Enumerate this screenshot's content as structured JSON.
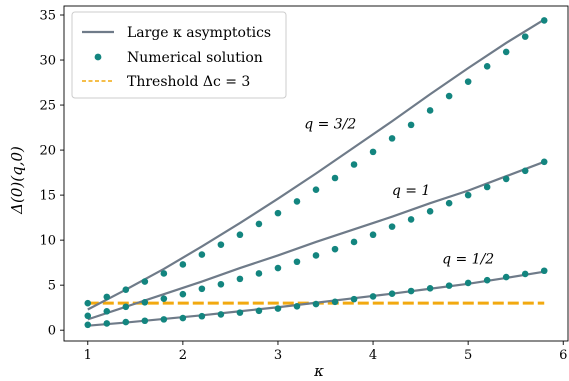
{
  "chart_data": {
    "type": "line",
    "xlabel": "κ",
    "ylabel": "Δ(0)(q,0)",
    "xlim": [
      0.75,
      6.05
    ],
    "ylim": [
      -1.2,
      36
    ],
    "x_ticks": [
      1,
      2,
      3,
      4,
      5,
      6
    ],
    "y_ticks": [
      0,
      5,
      10,
      15,
      20,
      25,
      30,
      35
    ],
    "grid": false,
    "legend_position": "top-left",
    "legend": [
      {
        "label": "Large κ asymptotics",
        "style": "line",
        "color": "#6f7b89"
      },
      {
        "label": "Numerical solution",
        "style": "marker",
        "color": "#13857f"
      },
      {
        "label": "Threshold Δc = 3",
        "style": "dashed",
        "color": "#f2a90f"
      }
    ],
    "annotations": [
      {
        "text": "q = 3/2",
        "x": 3.55,
        "y": 22.4
      },
      {
        "text": "q = 1",
        "x": 4.4,
        "y": 15.0
      },
      {
        "text": "q = 1/2",
        "x": 5.0,
        "y": 7.4
      }
    ],
    "series": [
      {
        "name": "Large κ asymptotics",
        "kind": "curves",
        "color": "#6f7b89",
        "curves": [
          {
            "q": "3/2",
            "x": [
              1.0,
              1.4,
              1.8,
              2.2,
              2.6,
              3.0,
              3.4,
              3.8,
              4.2,
              4.6,
              5.0,
              5.4,
              5.8
            ],
            "y": [
              2.3,
              4.5,
              6.8,
              9.3,
              11.9,
              14.6,
              17.4,
              20.3,
              23.2,
              26.2,
              29.1,
              31.9,
              34.5
            ]
          },
          {
            "q": "1",
            "x": [
              1.0,
              1.4,
              1.8,
              2.2,
              2.6,
              3.0,
              3.4,
              3.8,
              4.2,
              4.6,
              5.0,
              5.4,
              5.8
            ],
            "y": [
              1.2,
              2.6,
              4.0,
              5.4,
              6.9,
              8.3,
              9.8,
              11.2,
              12.6,
              14.1,
              15.5,
              17.1,
              18.7
            ]
          },
          {
            "q": "1/2",
            "x": [
              1.0,
              1.4,
              1.8,
              2.2,
              2.6,
              3.0,
              3.4,
              3.8,
              4.2,
              4.6,
              5.0,
              5.4,
              5.8
            ],
            "y": [
              0.5,
              0.85,
              1.25,
              1.65,
              2.1,
              2.55,
              3.05,
              3.55,
              4.05,
              4.6,
              5.15,
              5.8,
              6.5
            ]
          }
        ]
      },
      {
        "name": "Numerical solution",
        "kind": "points",
        "color": "#13857f",
        "curves": [
          {
            "q": "3/2",
            "x": [
              1.0,
              1.2,
              1.4,
              1.6,
              1.8,
              2.0,
              2.2,
              2.4,
              2.6,
              2.8,
              3.0,
              3.2,
              3.4,
              3.6,
              3.8,
              4.0,
              4.2,
              4.4,
              4.6,
              4.8,
              5.0,
              5.2,
              5.4,
              5.6,
              5.8
            ],
            "y": [
              3.0,
              3.7,
              4.5,
              5.4,
              6.3,
              7.3,
              8.4,
              9.5,
              10.6,
              11.8,
              13.0,
              14.3,
              15.6,
              16.9,
              18.4,
              19.8,
              21.3,
              22.8,
              24.4,
              26.0,
              27.6,
              29.3,
              30.9,
              32.6,
              34.4
            ]
          },
          {
            "q": "1",
            "x": [
              1.0,
              1.2,
              1.4,
              1.6,
              1.8,
              2.0,
              2.2,
              2.4,
              2.6,
              2.8,
              3.0,
              3.2,
              3.4,
              3.6,
              3.8,
              4.0,
              4.2,
              4.4,
              4.6,
              4.8,
              5.0,
              5.2,
              5.4,
              5.6,
              5.8
            ],
            "y": [
              1.6,
              2.1,
              2.6,
              3.1,
              3.5,
              4.0,
              4.6,
              5.1,
              5.7,
              6.3,
              6.9,
              7.6,
              8.3,
              9.0,
              9.8,
              10.6,
              11.5,
              12.3,
              13.2,
              14.1,
              15.0,
              15.9,
              16.8,
              17.7,
              18.7
            ]
          },
          {
            "q": "1/2",
            "x": [
              1.0,
              1.2,
              1.4,
              1.6,
              1.8,
              2.0,
              2.2,
              2.4,
              2.6,
              2.8,
              3.0,
              3.2,
              3.4,
              3.6,
              3.8,
              4.0,
              4.2,
              4.4,
              4.6,
              4.8,
              5.0,
              5.2,
              5.4,
              5.6,
              5.8
            ],
            "y": [
              0.6,
              0.75,
              0.9,
              1.05,
              1.2,
              1.35,
              1.55,
              1.75,
              1.95,
              2.15,
              2.4,
              2.65,
              2.9,
              3.15,
              3.45,
              3.75,
              4.05,
              4.35,
              4.65,
              4.95,
              5.25,
              5.55,
              5.9,
              6.25,
              6.6
            ]
          }
        ]
      },
      {
        "name": "Threshold Δc = 3",
        "kind": "hline",
        "color": "#f2a90f",
        "x": [
          1.0,
          5.8
        ],
        "y": 3
      }
    ]
  }
}
